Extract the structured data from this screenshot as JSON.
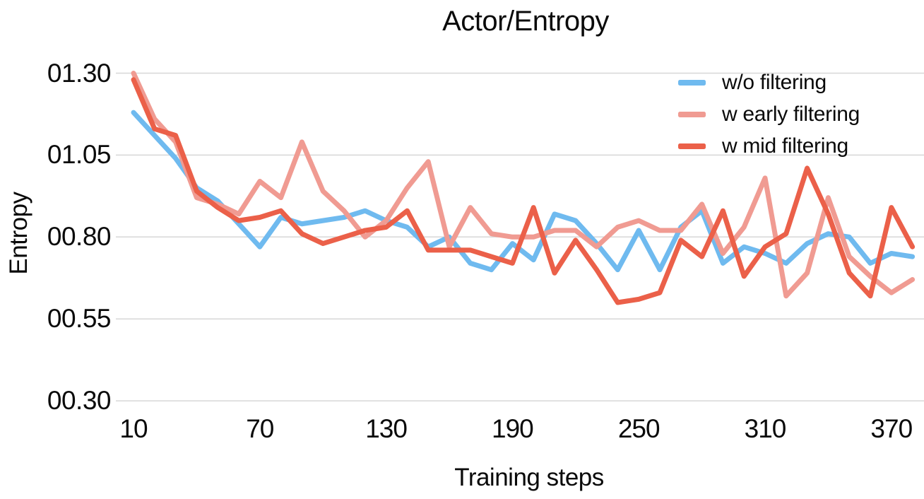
{
  "title": "Actor/Entropy",
  "x_axis": {
    "title": "Training steps",
    "ticks": [
      "10",
      "70",
      "130",
      "190",
      "250",
      "310",
      "370"
    ]
  },
  "y_axis": {
    "title": "Entropy",
    "ticks": [
      "01.30",
      "01.05",
      "00.80",
      "00.55",
      "00.30"
    ]
  },
  "legend": {
    "items": [
      {
        "label": "w/o filtering",
        "color": "#6FBAEF"
      },
      {
        "label": "w early filtering",
        "color": "#F09B92"
      },
      {
        "label": "w mid filtering",
        "color": "#EB6049"
      }
    ]
  },
  "colors": {
    "grid": "#D7D7D7",
    "text": "#0A0A0A",
    "background": "#FFFFFF"
  },
  "chart_data": {
    "type": "line",
    "title": "Actor/Entropy",
    "xlabel": "Training steps",
    "ylabel": "Entropy",
    "xlim": [
      10,
      380
    ],
    "ylim": [
      0.3,
      1.3
    ],
    "y_gridlines": [
      1.3,
      1.05,
      0.8,
      0.55,
      0.3
    ],
    "x_tick_values": [
      10,
      70,
      130,
      190,
      250,
      310,
      370
    ],
    "grid": "horizontal-only",
    "legend_position": "top-right",
    "x": [
      10,
      20,
      30,
      40,
      50,
      60,
      70,
      80,
      90,
      100,
      110,
      120,
      130,
      140,
      150,
      160,
      170,
      180,
      190,
      200,
      210,
      220,
      230,
      240,
      250,
      260,
      270,
      280,
      290,
      300,
      310,
      320,
      330,
      340,
      350,
      360,
      370,
      380
    ],
    "series": [
      {
        "name": "w/o filtering",
        "color": "#6FBAEF",
        "values": [
          1.18,
          1.11,
          1.04,
          0.95,
          0.91,
          0.84,
          0.77,
          0.86,
          0.84,
          0.85,
          0.86,
          0.88,
          0.85,
          0.83,
          0.77,
          0.8,
          0.72,
          0.7,
          0.78,
          0.73,
          0.87,
          0.85,
          0.78,
          0.7,
          0.82,
          0.7,
          0.83,
          0.88,
          0.72,
          0.77,
          0.75,
          0.72,
          0.78,
          0.81,
          0.8,
          0.72,
          0.75,
          0.74
        ]
      },
      {
        "name": "w early filtering",
        "color": "#F09B92",
        "values": [
          1.3,
          1.16,
          1.09,
          0.92,
          0.9,
          0.87,
          0.97,
          0.92,
          1.09,
          0.94,
          0.88,
          0.8,
          0.85,
          0.95,
          1.03,
          0.77,
          0.89,
          0.81,
          0.8,
          0.8,
          0.82,
          0.82,
          0.77,
          0.83,
          0.85,
          0.82,
          0.82,
          0.9,
          0.75,
          0.83,
          0.98,
          0.62,
          0.69,
          0.92,
          0.74,
          0.68,
          0.63,
          0.67
        ]
      },
      {
        "name": "w mid filtering",
        "color": "#EB6049",
        "values": [
          1.28,
          1.13,
          1.11,
          0.94,
          0.89,
          0.85,
          0.86,
          0.88,
          0.81,
          0.78,
          0.8,
          0.82,
          0.83,
          0.88,
          0.76,
          0.76,
          0.76,
          0.74,
          0.72,
          0.89,
          0.69,
          0.79,
          0.7,
          0.6,
          0.61,
          0.63,
          0.79,
          0.74,
          0.88,
          0.68,
          0.77,
          0.81,
          1.01,
          0.87,
          0.69,
          0.62,
          0.89,
          0.77
        ]
      }
    ]
  }
}
